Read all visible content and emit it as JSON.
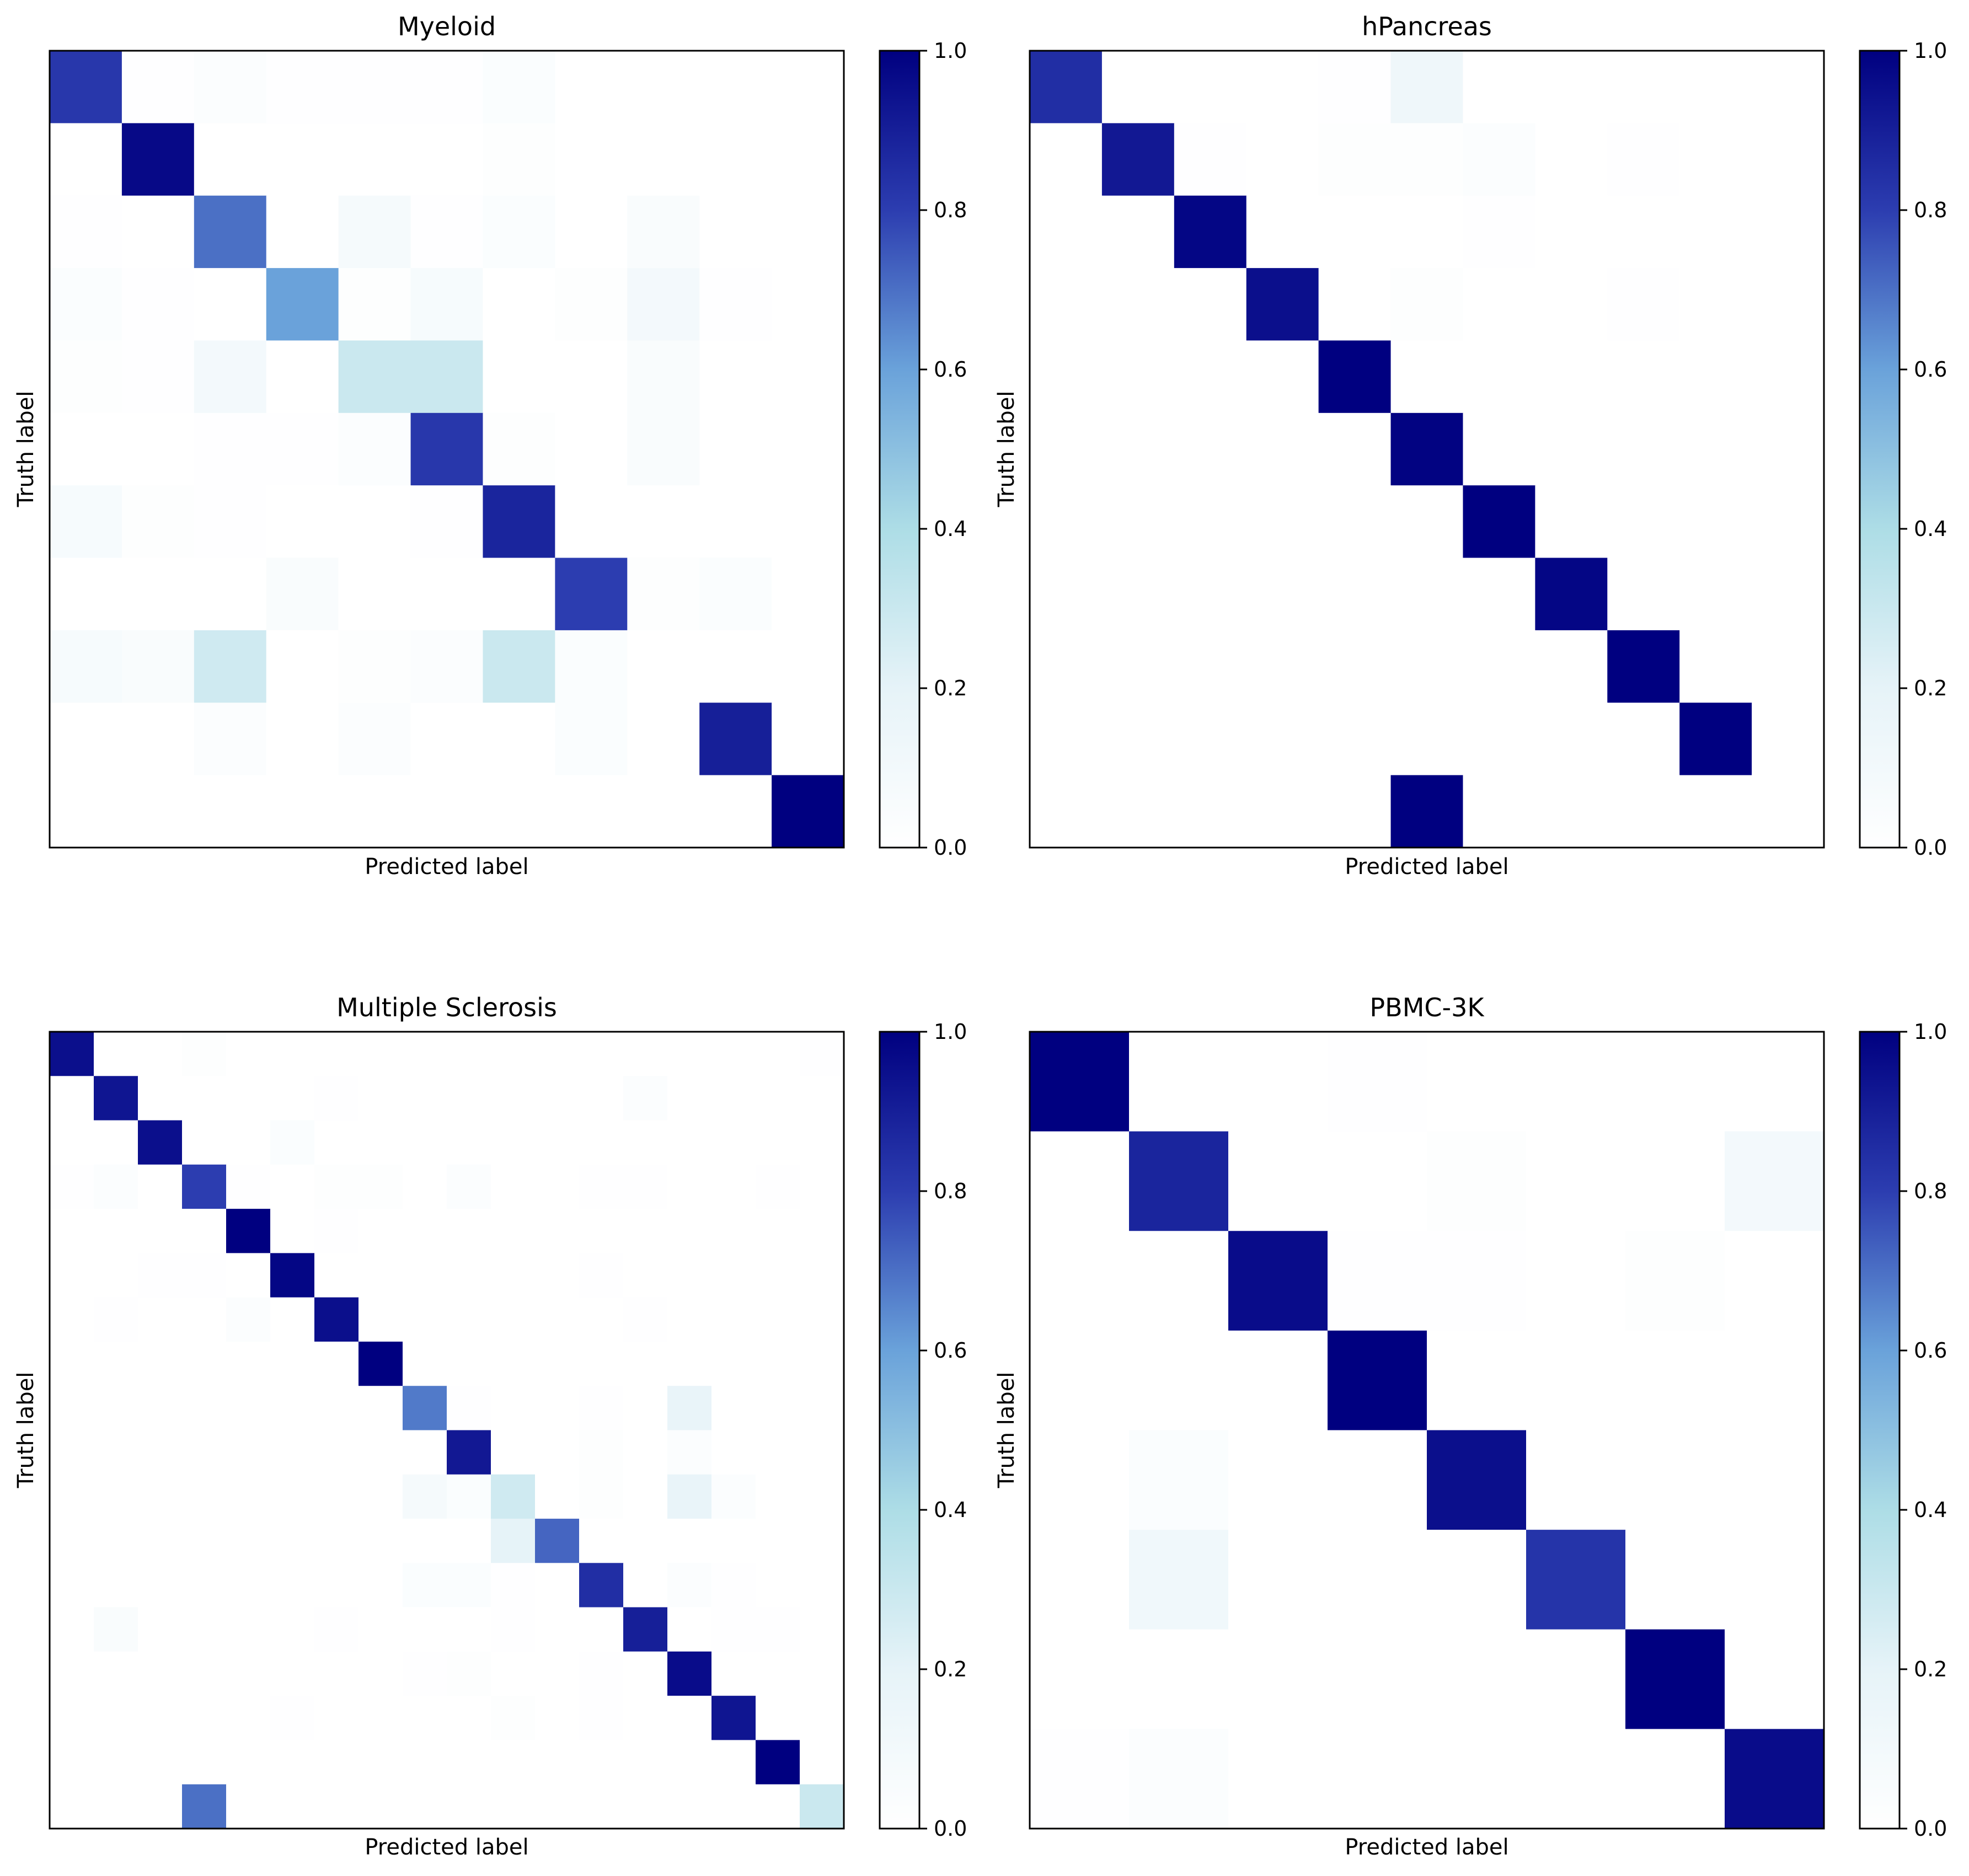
{
  "chart_data": [
    {
      "type": "heatmap",
      "title": "Myeloid",
      "xlabel": "Predicted label",
      "ylabel": "Truth label",
      "colorbar": {
        "range": [
          0,
          1
        ],
        "ticks": [
          "0.0",
          "0.2",
          "0.4",
          "0.6",
          "0.8",
          "1.0"
        ],
        "colormap": "white-lightblue-navy"
      },
      "matrix": [
        [
          0.82,
          0.01,
          0.03,
          0.01,
          0.01,
          0.01,
          0.04,
          0,
          0,
          0,
          0
        ],
        [
          0,
          0.97,
          0,
          0,
          0,
          0,
          0.02,
          0,
          0,
          0,
          0
        ],
        [
          0.01,
          0,
          0.7,
          0,
          0.08,
          0.01,
          0.04,
          0,
          0.05,
          0,
          0
        ],
        [
          0.04,
          0.01,
          0,
          0.6,
          0.02,
          0.07,
          0,
          0.02,
          0.1,
          0.01,
          0
        ],
        [
          0.02,
          0.01,
          0.1,
          0,
          0.3,
          0.3,
          0,
          0,
          0.05,
          0,
          0
        ],
        [
          0,
          0,
          0.01,
          0.01,
          0.03,
          0.82,
          0.02,
          0,
          0.05,
          0,
          0
        ],
        [
          0.07,
          0.02,
          0.01,
          0,
          0,
          0.01,
          0.88,
          0,
          0,
          0,
          0
        ],
        [
          0,
          0,
          0,
          0.05,
          0,
          0,
          0,
          0.8,
          0.02,
          0.04,
          0
        ],
        [
          0.07,
          0.05,
          0.28,
          0,
          0.02,
          0.03,
          0.3,
          0.04,
          0,
          0,
          0
        ],
        [
          0,
          0,
          0.03,
          0,
          0.03,
          0,
          0,
          0.04,
          0,
          0.9,
          0
        ],
        [
          0,
          0,
          0,
          0,
          0,
          0,
          0,
          0,
          0,
          0,
          1.0
        ]
      ]
    },
    {
      "type": "heatmap",
      "title": "hPancreas",
      "xlabel": "Predicted label",
      "ylabel": "Truth label",
      "colorbar": {
        "range": [
          0,
          1
        ],
        "ticks": [
          "0.0",
          "0.2",
          "0.4",
          "0.6",
          "0.8",
          "1.0"
        ],
        "colormap": "white-lightblue-navy"
      },
      "matrix": [
        [
          0.85,
          0,
          0,
          0,
          0.01,
          0.13,
          0,
          0,
          0,
          0,
          0
        ],
        [
          0,
          0.92,
          0.01,
          0,
          0.02,
          0.02,
          0.03,
          0,
          0.01,
          0,
          0
        ],
        [
          0,
          0,
          0.98,
          0,
          0,
          0,
          0.01,
          0,
          0,
          0,
          0
        ],
        [
          0,
          0,
          0,
          0.95,
          0,
          0.02,
          0,
          0,
          0.01,
          0,
          0
        ],
        [
          0,
          0,
          0,
          0,
          1.0,
          0,
          0,
          0,
          0,
          0,
          0
        ],
        [
          0,
          0,
          0,
          0,
          0,
          0.99,
          0,
          0,
          0,
          0,
          0
        ],
        [
          0,
          0,
          0,
          0,
          0,
          0,
          1.0,
          0,
          0,
          0,
          0
        ],
        [
          0,
          0,
          0,
          0,
          0,
          0,
          0,
          0.98,
          0,
          0,
          0
        ],
        [
          0,
          0,
          0,
          0,
          0,
          0,
          0,
          0,
          1.0,
          0,
          0
        ],
        [
          0,
          0,
          0,
          0,
          0,
          0,
          0,
          0,
          0,
          1.0,
          0
        ],
        [
          0,
          0,
          0,
          0,
          0,
          1.0,
          0,
          0,
          0,
          0,
          0
        ]
      ]
    },
    {
      "type": "heatmap",
      "title": "Multiple Sclerosis",
      "xlabel": "Predicted label",
      "ylabel": "Truth label",
      "colorbar": {
        "range": [
          0,
          1
        ],
        "ticks": [
          "0.0",
          "0.2",
          "0.4",
          "0.6",
          "0.8",
          "1.0"
        ],
        "colormap": "white-lightblue-navy"
      },
      "matrix": [
        [
          0.95,
          0,
          0,
          0.02,
          0,
          0,
          0,
          0,
          0,
          0,
          0,
          0,
          0,
          0,
          0,
          0,
          0,
          0.01
        ],
        [
          0,
          0.93,
          0,
          0,
          0,
          0,
          0.01,
          0,
          0,
          0,
          0,
          0,
          0,
          0.03,
          0,
          0,
          0,
          0
        ],
        [
          0,
          0,
          0.95,
          0,
          0,
          0.04,
          0,
          0,
          0,
          0,
          0,
          0,
          0,
          0,
          0,
          0,
          0,
          0
        ],
        [
          0.01,
          0.03,
          0,
          0.8,
          0.01,
          0,
          0.02,
          0.02,
          0,
          0.03,
          0,
          0,
          0.01,
          0.01,
          0,
          0,
          0.01,
          0
        ],
        [
          0,
          0,
          0,
          0,
          1.0,
          0,
          0.01,
          0,
          0,
          0,
          0,
          0,
          0,
          0,
          0,
          0,
          0,
          0
        ],
        [
          0,
          0,
          0.01,
          0.01,
          0,
          0.98,
          0,
          0,
          0,
          0,
          0,
          0,
          0.01,
          0,
          0,
          0,
          0,
          0
        ],
        [
          0,
          0.01,
          0,
          0,
          0.03,
          0,
          0.95,
          0,
          0,
          0,
          0,
          0,
          0,
          0.01,
          0,
          0,
          0,
          0
        ],
        [
          0,
          0,
          0,
          0,
          0,
          0,
          0,
          1.0,
          0,
          0,
          0,
          0,
          0,
          0,
          0,
          0,
          0,
          0
        ],
        [
          0,
          0,
          0,
          0,
          0,
          0,
          0,
          0,
          0.68,
          0.01,
          0,
          0,
          0.01,
          0,
          0.18,
          0,
          0,
          0
        ],
        [
          0,
          0,
          0,
          0,
          0,
          0,
          0,
          0,
          0,
          0.92,
          0,
          0,
          0.02,
          0,
          0.03,
          0,
          0,
          0
        ],
        [
          0,
          0,
          0,
          0,
          0,
          0,
          0,
          0,
          0.08,
          0.04,
          0.28,
          0,
          0.02,
          0,
          0.18,
          0.03,
          0,
          0
        ],
        [
          0,
          0,
          0,
          0,
          0,
          0,
          0,
          0,
          0,
          0,
          0.2,
          0.72,
          0,
          0,
          0,
          0,
          0,
          0
        ],
        [
          0,
          0,
          0,
          0,
          0,
          0,
          0,
          0,
          0.04,
          0.04,
          0.01,
          0,
          0.85,
          0,
          0.03,
          0.01,
          0,
          0
        ],
        [
          0,
          0.05,
          0,
          0,
          0,
          0,
          0.01,
          0,
          0,
          0,
          0.01,
          0,
          0,
          0.9,
          0,
          0.01,
          0.01,
          0
        ],
        [
          0,
          0,
          0,
          0,
          0,
          0,
          0,
          0,
          0.01,
          0.02,
          0,
          0,
          0.01,
          0,
          0.96,
          0,
          0,
          0
        ],
        [
          0,
          0,
          0,
          0,
          0,
          0.01,
          0,
          0,
          0,
          0,
          0.02,
          0,
          0.01,
          0,
          0,
          0.93,
          0,
          0
        ],
        [
          0,
          0,
          0,
          0,
          0,
          0,
          0,
          0,
          0,
          0,
          0,
          0,
          0,
          0,
          0,
          0,
          1.0,
          0
        ],
        [
          0,
          0,
          0,
          0.7,
          0,
          0,
          0,
          0,
          0,
          0,
          0,
          0,
          0,
          0,
          0,
          0,
          0,
          0.3
        ]
      ]
    },
    {
      "type": "heatmap",
      "title": "PBMC-3K",
      "xlabel": "Predicted label",
      "ylabel": "Truth label",
      "colorbar": {
        "range": [
          0,
          1
        ],
        "ticks": [
          "0.0",
          "0.2",
          "0.4",
          "0.6",
          "0.8",
          "1.0"
        ],
        "colormap": "white-lightblue-navy"
      },
      "matrix": [
        [
          1.0,
          0,
          0,
          0.01,
          0,
          0,
          0,
          0
        ],
        [
          0,
          0.88,
          0,
          0,
          0.02,
          0,
          0,
          0.1
        ],
        [
          0,
          0,
          0.96,
          0.01,
          0.01,
          0,
          0.02,
          0
        ],
        [
          0,
          0,
          0,
          1.0,
          0,
          0,
          0,
          0
        ],
        [
          0,
          0.04,
          0,
          0,
          0.95,
          0,
          0,
          0
        ],
        [
          0,
          0.12,
          0,
          0,
          0,
          0.83,
          0,
          0
        ],
        [
          0,
          0,
          0,
          0,
          0,
          0,
          1.0,
          0
        ],
        [
          0.01,
          0.03,
          0,
          0,
          0,
          0,
          0,
          0.96
        ]
      ]
    }
  ]
}
